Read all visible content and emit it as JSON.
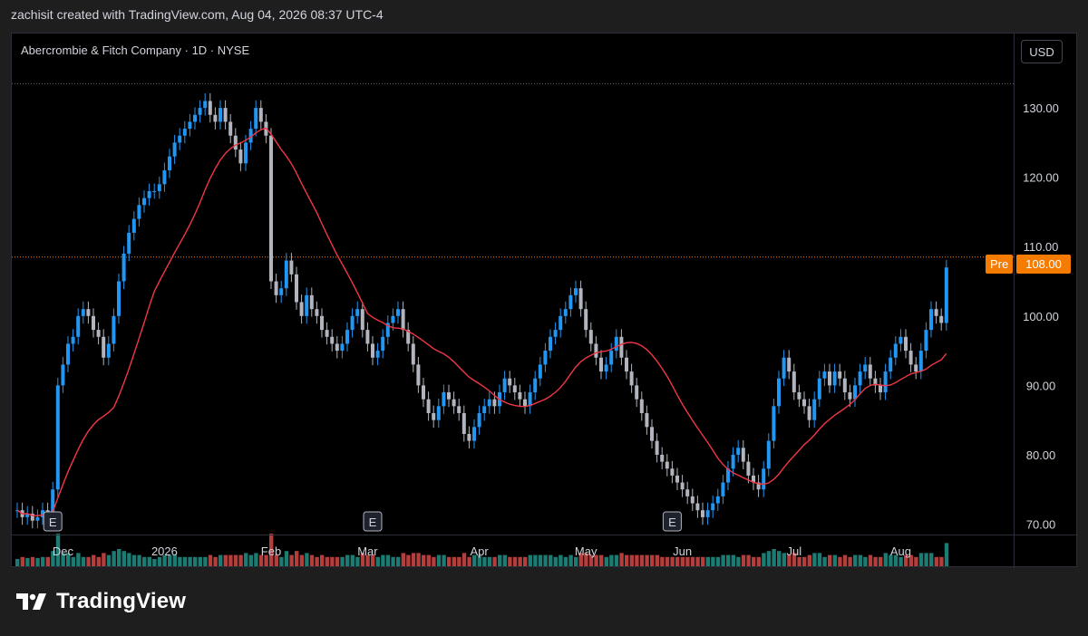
{
  "header": {
    "caption": "zachisit created with TradingView.com, Aug 04, 2026 08:37 UTC-4"
  },
  "chart_header": {
    "symbol_title": "Abercrombie & Fitch Company · 1D · NYSE",
    "currency_button": "USD"
  },
  "price_label": {
    "tag": "Pre",
    "value": "108.00"
  },
  "footer": {
    "brand": "TradingView"
  },
  "colors": {
    "up": "#2196f3",
    "down": "#b2b5be",
    "ma": "#f23645",
    "vol_up": "#26a69a",
    "vol_down": "#ef5350",
    "pre_label": "#f57c00"
  },
  "chart_data": {
    "type": "candlestick",
    "title": "Abercrombie & Fitch Company · 1D · NYSE",
    "x_tick_labels": [
      "Dec",
      "2026",
      "Feb",
      "Mar",
      "Apr",
      "May",
      "Jun",
      "Jul",
      "Aug"
    ],
    "y_tick_labels": [
      "130.00",
      "120.00",
      "110.00",
      "100.00",
      "90.00",
      "80.00",
      "70.00"
    ],
    "ylim": [
      68.5,
      135.5
    ],
    "y_ticks": [
      130,
      120,
      110,
      100,
      90,
      80,
      70
    ],
    "x_ticks_index": [
      9,
      29,
      50,
      69,
      91,
      112,
      131,
      153,
      174
    ],
    "earnings_markers_index": [
      7,
      70,
      129
    ],
    "earnings_label": "E",
    "reference_lines": [
      133.5,
      108.5
    ],
    "last_price": 108.0,
    "ma_period": 20,
    "start_close": 72,
    "closes": [
      72,
      71,
      71.5,
      70.5,
      71,
      72,
      71,
      75,
      90,
      93,
      96,
      97,
      100,
      101,
      100,
      98,
      97,
      94,
      96,
      100,
      105,
      109,
      112,
      114,
      116,
      117,
      118,
      118,
      119,
      121,
      123,
      125,
      126,
      127,
      128,
      129,
      130,
      131,
      129,
      128,
      130,
      128,
      126,
      124,
      122,
      125,
      127,
      130,
      128,
      126,
      105,
      103,
      104,
      108,
      106,
      102,
      100,
      103,
      101,
      100,
      98,
      97,
      96,
      95,
      96,
      98,
      100,
      101,
      98,
      96,
      94,
      95,
      97,
      99,
      100,
      101,
      98,
      96,
      93,
      90,
      88,
      86,
      85,
      87,
      89,
      88,
      87,
      86,
      83,
      82,
      84,
      86,
      87,
      88,
      87,
      89,
      91,
      90,
      89,
      88,
      87,
      89,
      91,
      93,
      95,
      97,
      98,
      100,
      101,
      103,
      104,
      101,
      98,
      96,
      94,
      92,
      93,
      95,
      97,
      94,
      92,
      90,
      88,
      86,
      84,
      82,
      80,
      79,
      78,
      77,
      76,
      75,
      74,
      73,
      72,
      71,
      72,
      73,
      74,
      76,
      78,
      80,
      81,
      79,
      77,
      76,
      75,
      78,
      82,
      87,
      91,
      94,
      92,
      89,
      88,
      87,
      85,
      88,
      91,
      92,
      90,
      92,
      91,
      89,
      88,
      90,
      92,
      93,
      91,
      90,
      89,
      92,
      94,
      96,
      97,
      95,
      93,
      92,
      95,
      98,
      101,
      100,
      99,
      107
    ]
  }
}
